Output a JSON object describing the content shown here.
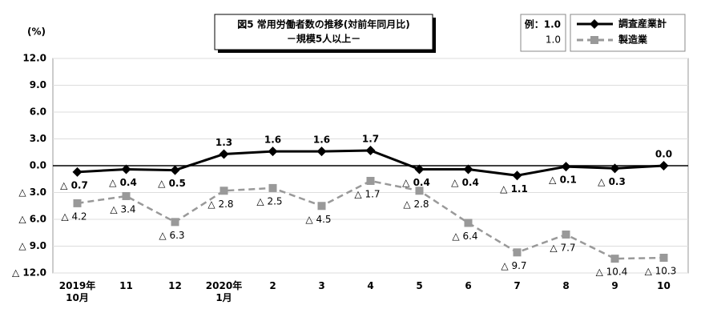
{
  "chart_data": {
    "type": "line",
    "title": "図5  常用労働者数の推移(対前年同月比)",
    "subtitle": "－規模5人以上－",
    "y_unit": "(%)",
    "legend_example": [
      "例：1.0",
      "1.0"
    ],
    "categories": [
      "2019年\n10月",
      "11",
      "12",
      "2020年\n1月",
      "2",
      "3",
      "4",
      "5",
      "6",
      "7",
      "8",
      "9",
      "10"
    ],
    "series": [
      {
        "name": "調査産業計",
        "color": "#000000",
        "marker": "diamond",
        "dashed": false,
        "values": [
          -0.7,
          -0.4,
          -0.5,
          1.3,
          1.6,
          1.6,
          1.7,
          -0.4,
          -0.4,
          -1.1,
          -0.1,
          -0.3,
          0.0
        ],
        "value_labels": [
          "△ 0.7",
          "△ 0.4",
          "△ 0.5",
          "1.3",
          "1.6",
          "1.6",
          "1.7",
          "△ 0.4",
          "△ 0.4",
          "△ 1.1",
          "△ 0.1",
          "△ 0.3",
          "0.0"
        ]
      },
      {
        "name": "製造業",
        "color": "#999999",
        "marker": "square",
        "dashed": true,
        "values": [
          -4.2,
          -3.4,
          -6.3,
          -2.8,
          -2.5,
          -4.5,
          -1.7,
          -2.8,
          -6.4,
          -9.7,
          -7.7,
          -10.4,
          -10.3
        ],
        "value_labels": [
          "△ 4.2",
          "△ 3.4",
          "△ 6.3",
          "△ 2.8",
          "△ 2.5",
          "△ 4.5",
          "△ 1.7",
          "△ 2.8",
          "△ 6.4",
          "△ 9.7",
          "△ 7.7",
          "△ 10.4",
          "△ 10.3"
        ]
      }
    ],
    "ylim": [
      -12,
      12
    ],
    "yticks": [
      {
        "value": 12,
        "label": "12.0"
      },
      {
        "value": 9,
        "label": "9.0"
      },
      {
        "value": 6,
        "label": "6.0"
      },
      {
        "value": 3,
        "label": "3.0"
      },
      {
        "value": 0,
        "label": "0.0"
      },
      {
        "value": -3,
        "label": "△ 3.0"
      },
      {
        "value": -6,
        "label": "△ 6.0"
      },
      {
        "value": -9,
        "label": "△ 9.0"
      },
      {
        "value": -12,
        "label": "△ 12.0"
      }
    ],
    "grid": true
  }
}
